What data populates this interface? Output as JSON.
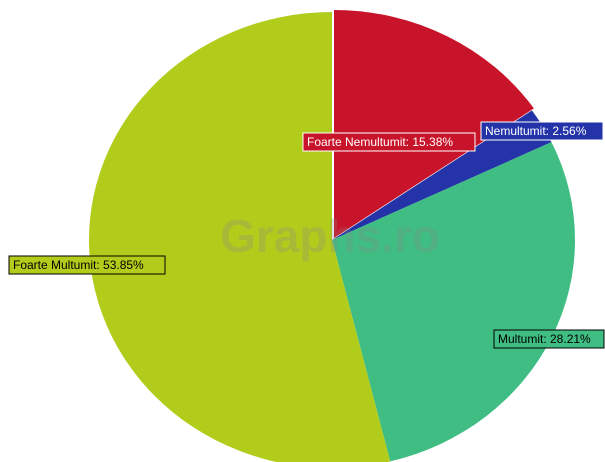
{
  "chart_data": {
    "type": "pie",
    "watermark": "Graphs.ro",
    "labels": [
      "Foarte Nemultumit: 15.38%",
      "Nemultumit: 2.56%",
      "Multumit: 28.21%",
      "Foarte Multumit: 53.85%"
    ],
    "values": [
      15.38,
      2.56,
      28.21,
      53.85
    ],
    "colors": [
      "#c8142a",
      "#2434a8",
      "#3fbd82",
      "#b2cc1c"
    ],
    "label_text_colors": [
      "#ffffff",
      "#ffffff",
      "#000000",
      "#000000"
    ]
  }
}
